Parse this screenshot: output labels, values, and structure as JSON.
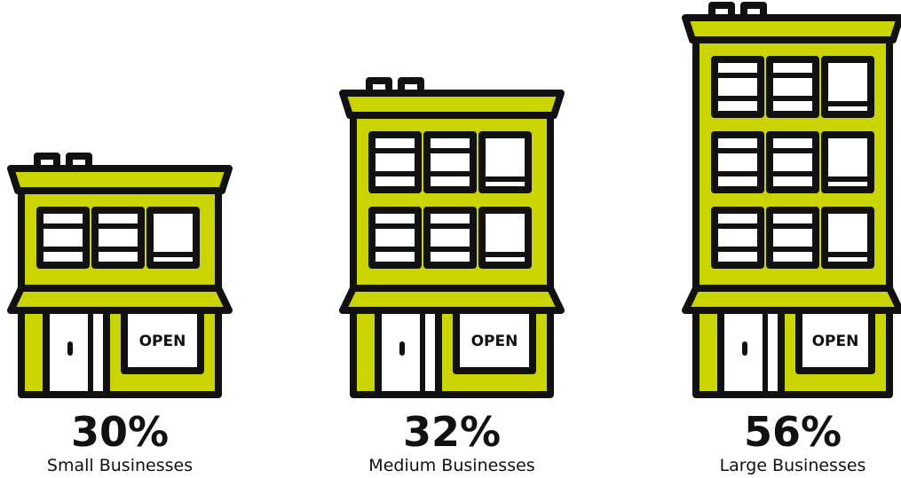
{
  "items": [
    {
      "percent": "30%",
      "label": "Small Businesses",
      "sign": "OPEN"
    },
    {
      "percent": "32%",
      "label": "Medium Businesses",
      "sign": "OPEN"
    },
    {
      "percent": "56%",
      "label": "Large Businesses",
      "sign": "OPEN"
    }
  ]
}
